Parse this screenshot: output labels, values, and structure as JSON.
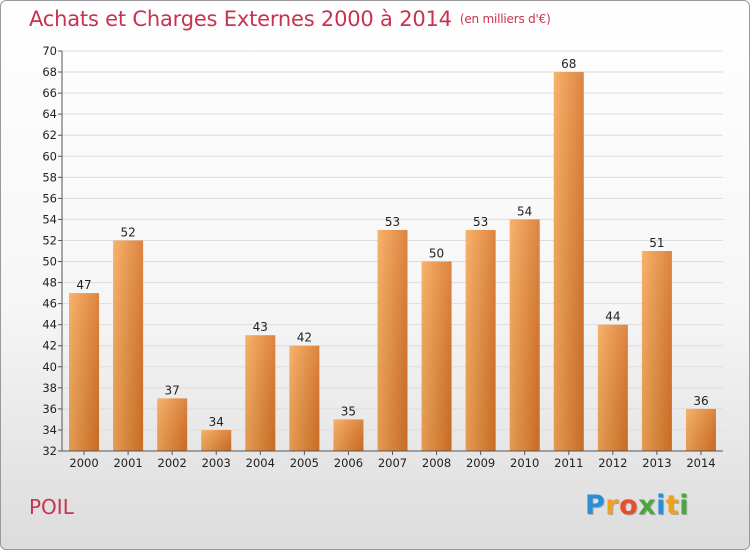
{
  "title": "Achats et Charges Externes 2000 à 2014",
  "subtitle": "(en milliers d'€)",
  "footer_label": "POIL",
  "logo": {
    "letters": [
      "P",
      "r",
      "o",
      "x",
      "i",
      "t",
      "i"
    ],
    "colors": [
      "#2a8fd6",
      "#f0a020",
      "#e84d2c",
      "#4aa83a",
      "#2a8fd6",
      "#f0a020",
      "#4aa83a"
    ]
  },
  "colors": {
    "title": "#c8334f",
    "bar_light": "#f7a858",
    "bar_dark": "#d87428",
    "grid": "#dddddd",
    "axis_text": "#222222"
  },
  "chart_data": {
    "type": "bar",
    "title": "Achats et Charges Externes 2000 à 2014",
    "subtitle": "(en milliers d'€)",
    "categories": [
      "2000",
      "2001",
      "2002",
      "2003",
      "2004",
      "2005",
      "2006",
      "2007",
      "2008",
      "2009",
      "2010",
      "2011",
      "2012",
      "2013",
      "2014"
    ],
    "values": [
      47,
      52,
      37,
      34,
      43,
      42,
      35,
      53,
      50,
      53,
      54,
      68,
      44,
      51,
      36
    ],
    "ylim": [
      32,
      70
    ],
    "yticks": [
      32,
      34,
      36,
      38,
      40,
      42,
      44,
      46,
      48,
      50,
      52,
      54,
      56,
      58,
      60,
      62,
      64,
      66,
      68,
      70
    ],
    "grid": true,
    "data_labels": true
  }
}
